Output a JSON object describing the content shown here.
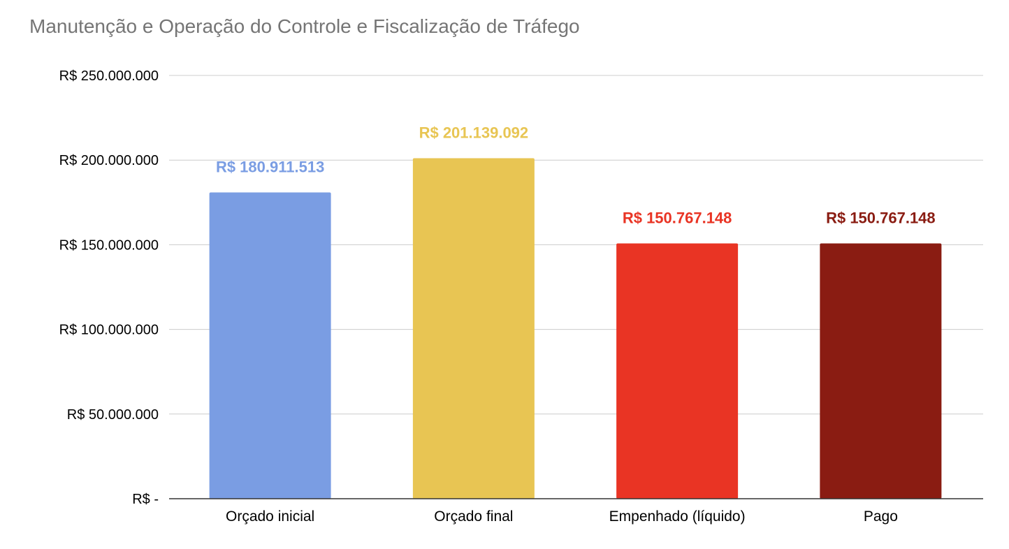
{
  "chart_data": {
    "type": "bar",
    "title": "Manutenção e Operação do Controle e Fiscalização de Tráfego",
    "xlabel": "",
    "ylabel": "",
    "categories": [
      "Orçado inicial",
      "Orçado final",
      "Empenhado (líquido)",
      "Pago"
    ],
    "values": [
      180911513,
      201139092,
      150767148,
      150767148
    ],
    "data_labels": [
      "R$  180.911.513",
      "R$  201.139.092",
      "R$  150.767.148",
      "R$  150.767.148"
    ],
    "bar_colors": [
      "#7a9de3",
      "#e8c553",
      "#e93424",
      "#8a1c12"
    ],
    "ylim": [
      0,
      250000000
    ],
    "yticks": [
      0,
      50000000,
      100000000,
      150000000,
      200000000,
      250000000
    ],
    "ytick_labels": [
      "R$  -",
      "R$  50.000.000",
      "R$ 100.000.000",
      "R$ 150.000.000",
      "R$ 200.000.000",
      "R$ 250.000.000"
    ],
    "grid": true,
    "legend": "none"
  }
}
